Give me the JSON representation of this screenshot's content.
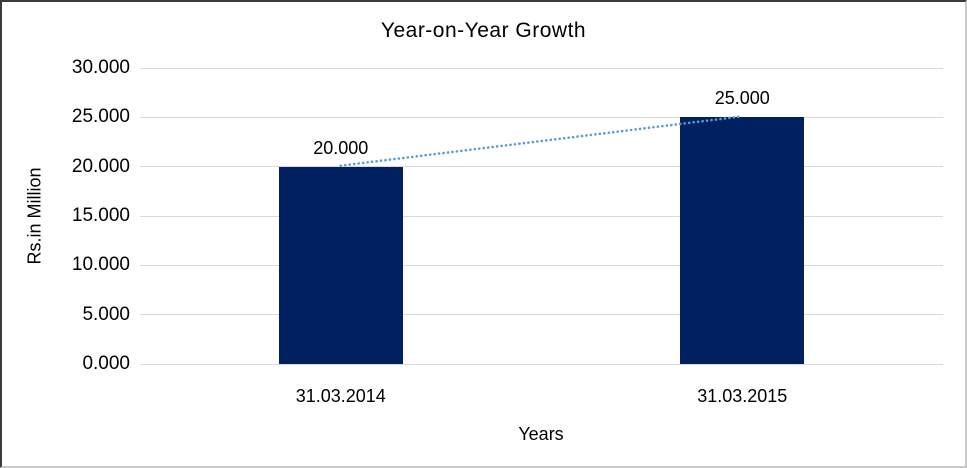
{
  "chart_data": {
    "type": "bar",
    "title": "Year-on-Year Growth",
    "xlabel": "Years",
    "ylabel": "Rs.in Million",
    "categories": [
      "31.03.2014",
      "31.03.2015"
    ],
    "values": [
      20,
      25
    ],
    "data_labels": [
      "20.000",
      "25.000"
    ],
    "ylim": [
      0,
      30
    ],
    "ytick_step": 5,
    "ytick_labels": [
      "0.000",
      "5.000",
      "10.000",
      "15.000",
      "20.000",
      "25.000",
      "30.000"
    ],
    "grid": true,
    "legend": "none",
    "trendline": {
      "type": "linear",
      "style": "dotted",
      "connects": [
        "31.03.2014",
        "31.03.2015"
      ]
    },
    "colors": {
      "bar": "#002060",
      "trendline": "#5b9bd5",
      "gridline": "#d9d9d9",
      "text": "#000000"
    }
  }
}
